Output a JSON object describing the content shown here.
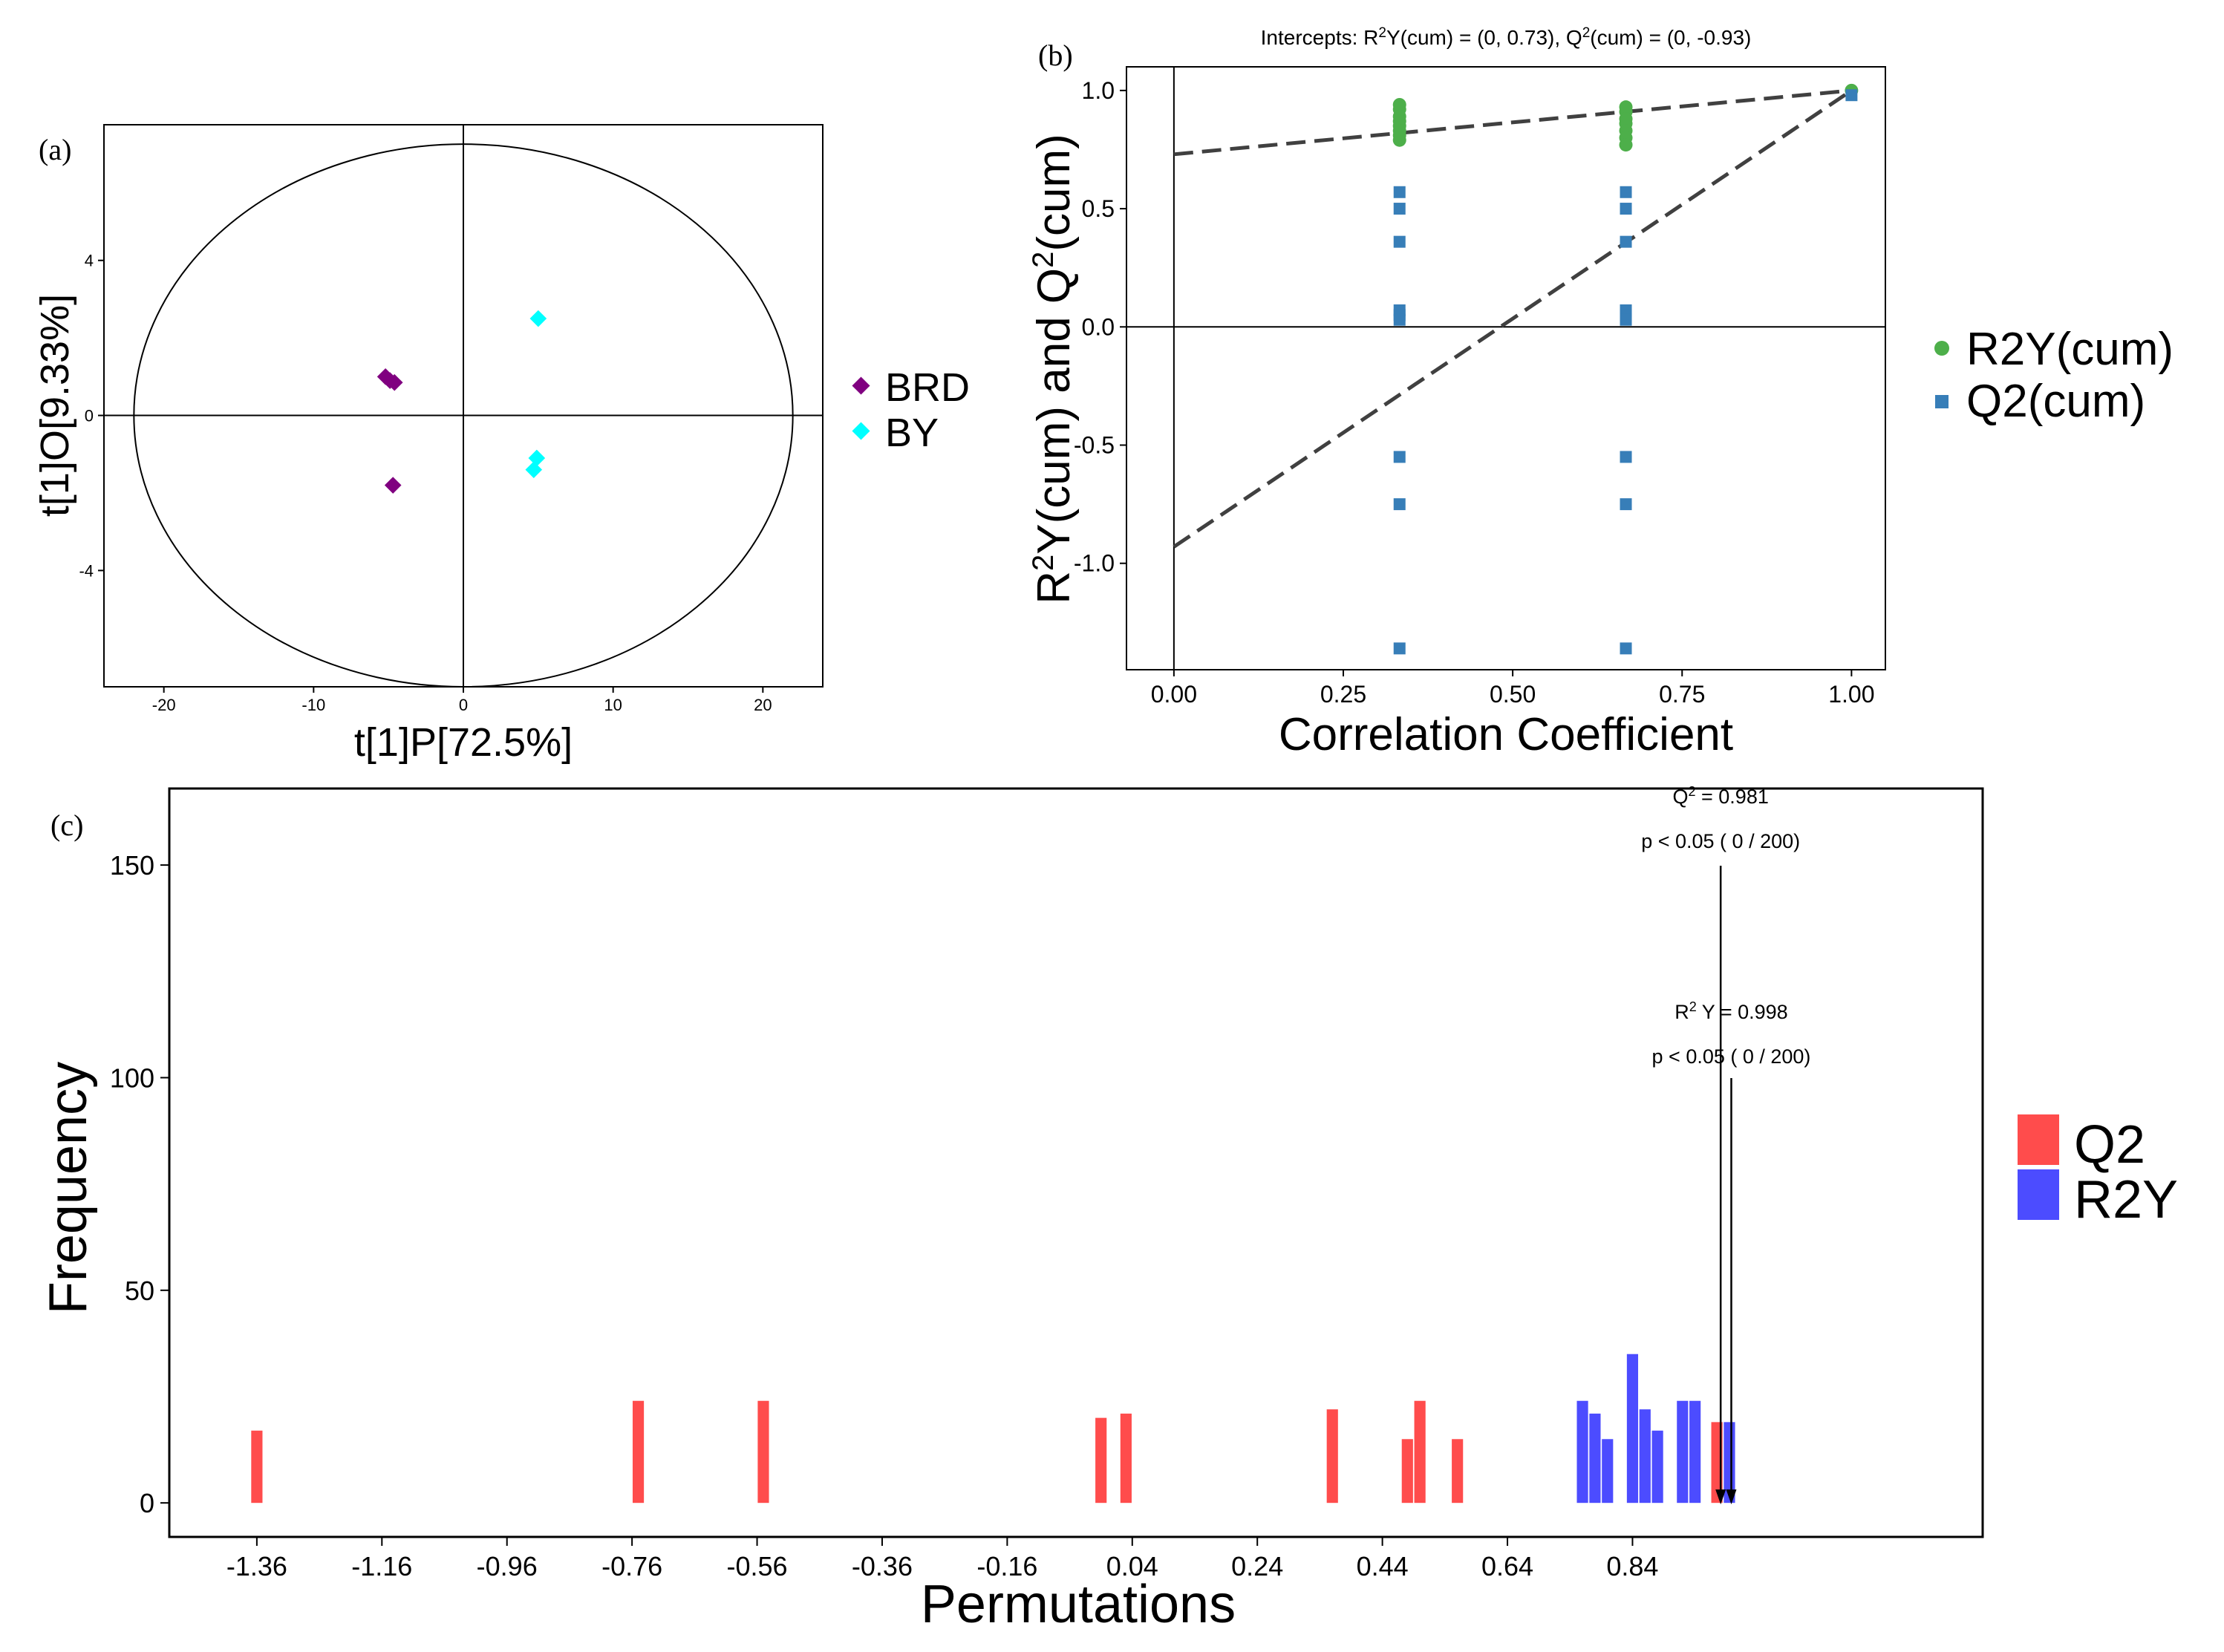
{
  "chart_data": [
    {
      "id": "a",
      "panel_label": "(a)",
      "type": "scatter",
      "title": "",
      "xlabel": "t[1]P[72.5%]",
      "ylabel": "t[1]O[9.33%]",
      "xlim": [
        -24,
        24
      ],
      "ylim": [
        -7,
        7.5
      ],
      "xticks": [
        -20,
        -10,
        0,
        10,
        20
      ],
      "yticks": [
        -4,
        0,
        4
      ],
      "xtick_labels": [
        "-20",
        "-10",
        "0",
        "10",
        "20"
      ],
      "ytick_labels": [
        "-4",
        "0",
        "4"
      ],
      "ellipse": {
        "rx": 22,
        "ry": 7
      },
      "series": [
        {
          "name": "BRD",
          "color": "#800080",
          "marker": "diamond",
          "points": [
            [
              -5.2,
              1.0
            ],
            [
              -4.9,
              0.9
            ],
            [
              -4.6,
              0.85
            ],
            [
              -4.7,
              -1.8
            ]
          ]
        },
        {
          "name": "BY",
          "color": "#00FFFF",
          "marker": "diamond",
          "points": [
            [
              5.0,
              2.5
            ],
            [
              4.9,
              -1.1
            ],
            [
              4.7,
              -1.4
            ]
          ]
        }
      ],
      "legend": {
        "position": "right",
        "items": [
          "BRD",
          "BY"
        ]
      }
    },
    {
      "id": "b",
      "panel_label": "(b)",
      "type": "scatter",
      "title": "Intercepts: R2Y(cum) = (0, 0.73), Q2(cum) = (0, -0.93)",
      "xlabel": "Correlation Coefficient",
      "ylabel": "R2Y(cum) and Q2(cum)",
      "xlim": [
        -0.07,
        1.05
      ],
      "ylim": [
        -1.45,
        1.1
      ],
      "xticks": [
        0,
        0.25,
        0.5,
        0.75,
        1.0
      ],
      "yticks": [
        -1.0,
        -0.5,
        0.0,
        0.5,
        1.0
      ],
      "xtick_labels": [
        "0.00",
        "0.25",
        "0.50",
        "0.75",
        "1.00"
      ],
      "ytick_labels": [
        "-1.0",
        "-0.5",
        "0.0",
        "0.5",
        "1.0"
      ],
      "series": [
        {
          "name": "R2Y(cum)",
          "color": "#4DAF4A",
          "marker": "circle",
          "points": [
            [
              0.333,
              0.94
            ],
            [
              0.333,
              0.92
            ],
            [
              0.333,
              0.89
            ],
            [
              0.333,
              0.87
            ],
            [
              0.333,
              0.85
            ],
            [
              0.333,
              0.83
            ],
            [
              0.333,
              0.81
            ],
            [
              0.333,
              0.79
            ],
            [
              0.667,
              0.93
            ],
            [
              0.667,
              0.91
            ],
            [
              0.667,
              0.88
            ],
            [
              0.667,
              0.86
            ],
            [
              0.667,
              0.83
            ],
            [
              0.667,
              0.8
            ],
            [
              0.667,
              0.77
            ],
            [
              1.0,
              1.0
            ]
          ]
        },
        {
          "name": "Q2(cum)",
          "color": "#377EB8",
          "marker": "square",
          "points": [
            [
              0.333,
              0.57
            ],
            [
              0.333,
              0.5
            ],
            [
              0.333,
              0.36
            ],
            [
              0.333,
              0.07
            ],
            [
              0.333,
              0.05
            ],
            [
              0.333,
              0.03
            ],
            [
              0.333,
              -0.55
            ],
            [
              0.333,
              -0.75
            ],
            [
              0.333,
              -1.36
            ],
            [
              0.667,
              0.57
            ],
            [
              0.667,
              0.5
            ],
            [
              0.667,
              0.36
            ],
            [
              0.667,
              0.07
            ],
            [
              0.667,
              0.05
            ],
            [
              0.667,
              0.03
            ],
            [
              0.667,
              -0.55
            ],
            [
              0.667,
              -0.75
            ],
            [
              0.667,
              -1.36
            ],
            [
              1.0,
              0.98
            ]
          ]
        }
      ],
      "regression_lines": [
        {
          "name": "R2Y(cum)",
          "from": [
            0,
            0.73
          ],
          "to": [
            1,
            1.0
          ]
        },
        {
          "name": "Q2(cum)",
          "from": [
            0,
            -0.93
          ],
          "to": [
            1,
            1.0
          ]
        }
      ],
      "legend": {
        "position": "right",
        "items": [
          "R2Y(cum)",
          "Q2(cum)"
        ]
      }
    },
    {
      "id": "c",
      "panel_label": "(c)",
      "type": "bar",
      "title": "",
      "xlabel": "Permutations",
      "ylabel": "Frequency",
      "xlim": [
        -1.5,
        1.4
      ],
      "ylim": [
        -8,
        168
      ],
      "xticks": [
        -1.36,
        -1.16,
        -0.96,
        -0.76,
        -0.56,
        -0.36,
        -0.16,
        0.04,
        0.24,
        0.44,
        0.64,
        0.84
      ],
      "yticks": [
        0,
        50,
        100,
        150
      ],
      "xtick_labels": [
        "-1.36",
        "-1.16",
        "-0.96",
        "-0.76",
        "-0.56",
        "-0.36",
        "-0.16",
        "0.04",
        "0.24",
        "0.44",
        "0.64",
        "0.84"
      ],
      "ytick_labels": [
        "0",
        "50",
        "100",
        "150"
      ],
      "bar_width": 0.018,
      "series": [
        {
          "name": "Q2",
          "color": "#FF4C4C",
          "x": [
            -1.36,
            -0.75,
            -0.55,
            -0.01,
            0.03,
            0.36,
            0.48,
            0.5,
            0.56,
            0.975
          ],
          "values": [
            17,
            24,
            24,
            20,
            21,
            22,
            15,
            24,
            15,
            19
          ]
        },
        {
          "name": "R2Y",
          "color": "#4C4CFF",
          "x": [
            0.76,
            0.78,
            0.8,
            0.84,
            0.86,
            0.88,
            0.92,
            0.94,
            0.995
          ],
          "values": [
            24,
            21,
            15,
            35,
            22,
            17,
            24,
            24,
            19
          ]
        }
      ],
      "annotations": [
        {
          "target": "Q2",
          "x": 0.981,
          "text_prefix": "Q",
          "text_value": " =  0.981",
          "pvalue": "p < 0.05 ( 0 / 200)"
        },
        {
          "target": "R2Y",
          "x": 0.998,
          "text_prefix": "R",
          "text_value": " Y =  0.998",
          "pvalue": "p < 0.05 ( 0 / 200)"
        }
      ],
      "legend": {
        "position": "right",
        "items": [
          "Q2",
          "R2Y"
        ]
      }
    }
  ]
}
